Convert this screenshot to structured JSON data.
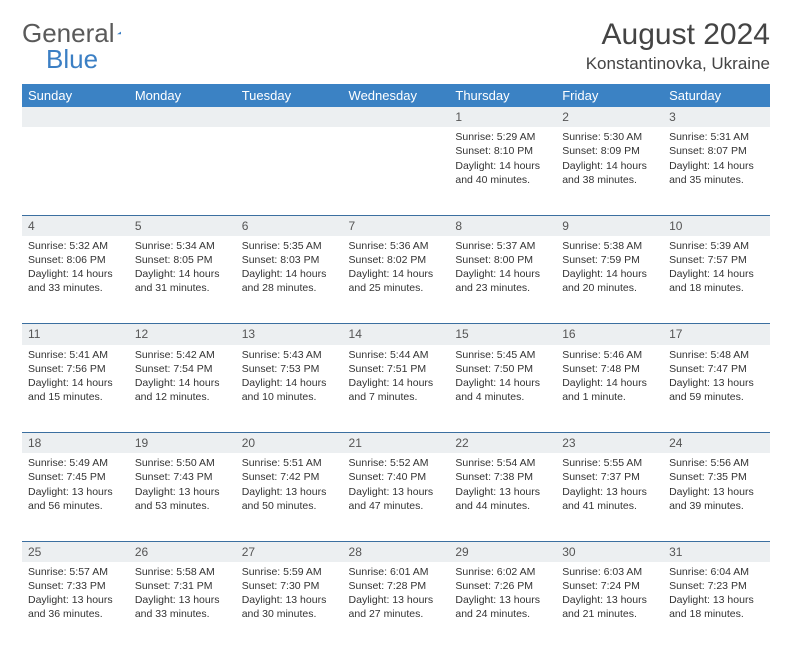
{
  "logo": {
    "part1": "General",
    "part2": "Blue"
  },
  "title": "August 2024",
  "location": "Konstantinovka, Ukraine",
  "colors": {
    "header_bg": "#3b82c4",
    "header_text": "#ffffff",
    "daynum_bg": "#eceff1",
    "row_border": "#3b6fa0",
    "logo_gray": "#5a5a5a",
    "logo_blue": "#3b7fc4"
  },
  "day_headers": [
    "Sunday",
    "Monday",
    "Tuesday",
    "Wednesday",
    "Thursday",
    "Friday",
    "Saturday"
  ],
  "weeks": [
    [
      null,
      null,
      null,
      null,
      {
        "n": "1",
        "sr": "5:29 AM",
        "ss": "8:10 PM",
        "dl": "14 hours and 40 minutes."
      },
      {
        "n": "2",
        "sr": "5:30 AM",
        "ss": "8:09 PM",
        "dl": "14 hours and 38 minutes."
      },
      {
        "n": "3",
        "sr": "5:31 AM",
        "ss": "8:07 PM",
        "dl": "14 hours and 35 minutes."
      }
    ],
    [
      {
        "n": "4",
        "sr": "5:32 AM",
        "ss": "8:06 PM",
        "dl": "14 hours and 33 minutes."
      },
      {
        "n": "5",
        "sr": "5:34 AM",
        "ss": "8:05 PM",
        "dl": "14 hours and 31 minutes."
      },
      {
        "n": "6",
        "sr": "5:35 AM",
        "ss": "8:03 PM",
        "dl": "14 hours and 28 minutes."
      },
      {
        "n": "7",
        "sr": "5:36 AM",
        "ss": "8:02 PM",
        "dl": "14 hours and 25 minutes."
      },
      {
        "n": "8",
        "sr": "5:37 AM",
        "ss": "8:00 PM",
        "dl": "14 hours and 23 minutes."
      },
      {
        "n": "9",
        "sr": "5:38 AM",
        "ss": "7:59 PM",
        "dl": "14 hours and 20 minutes."
      },
      {
        "n": "10",
        "sr": "5:39 AM",
        "ss": "7:57 PM",
        "dl": "14 hours and 18 minutes."
      }
    ],
    [
      {
        "n": "11",
        "sr": "5:41 AM",
        "ss": "7:56 PM",
        "dl": "14 hours and 15 minutes."
      },
      {
        "n": "12",
        "sr": "5:42 AM",
        "ss": "7:54 PM",
        "dl": "14 hours and 12 minutes."
      },
      {
        "n": "13",
        "sr": "5:43 AM",
        "ss": "7:53 PM",
        "dl": "14 hours and 10 minutes."
      },
      {
        "n": "14",
        "sr": "5:44 AM",
        "ss": "7:51 PM",
        "dl": "14 hours and 7 minutes."
      },
      {
        "n": "15",
        "sr": "5:45 AM",
        "ss": "7:50 PM",
        "dl": "14 hours and 4 minutes."
      },
      {
        "n": "16",
        "sr": "5:46 AM",
        "ss": "7:48 PM",
        "dl": "14 hours and 1 minute."
      },
      {
        "n": "17",
        "sr": "5:48 AM",
        "ss": "7:47 PM",
        "dl": "13 hours and 59 minutes."
      }
    ],
    [
      {
        "n": "18",
        "sr": "5:49 AM",
        "ss": "7:45 PM",
        "dl": "13 hours and 56 minutes."
      },
      {
        "n": "19",
        "sr": "5:50 AM",
        "ss": "7:43 PM",
        "dl": "13 hours and 53 minutes."
      },
      {
        "n": "20",
        "sr": "5:51 AM",
        "ss": "7:42 PM",
        "dl": "13 hours and 50 minutes."
      },
      {
        "n": "21",
        "sr": "5:52 AM",
        "ss": "7:40 PM",
        "dl": "13 hours and 47 minutes."
      },
      {
        "n": "22",
        "sr": "5:54 AM",
        "ss": "7:38 PM",
        "dl": "13 hours and 44 minutes."
      },
      {
        "n": "23",
        "sr": "5:55 AM",
        "ss": "7:37 PM",
        "dl": "13 hours and 41 minutes."
      },
      {
        "n": "24",
        "sr": "5:56 AM",
        "ss": "7:35 PM",
        "dl": "13 hours and 39 minutes."
      }
    ],
    [
      {
        "n": "25",
        "sr": "5:57 AM",
        "ss": "7:33 PM",
        "dl": "13 hours and 36 minutes."
      },
      {
        "n": "26",
        "sr": "5:58 AM",
        "ss": "7:31 PM",
        "dl": "13 hours and 33 minutes."
      },
      {
        "n": "27",
        "sr": "5:59 AM",
        "ss": "7:30 PM",
        "dl": "13 hours and 30 minutes."
      },
      {
        "n": "28",
        "sr": "6:01 AM",
        "ss": "7:28 PM",
        "dl": "13 hours and 27 minutes."
      },
      {
        "n": "29",
        "sr": "6:02 AM",
        "ss": "7:26 PM",
        "dl": "13 hours and 24 minutes."
      },
      {
        "n": "30",
        "sr": "6:03 AM",
        "ss": "7:24 PM",
        "dl": "13 hours and 21 minutes."
      },
      {
        "n": "31",
        "sr": "6:04 AM",
        "ss": "7:23 PM",
        "dl": "13 hours and 18 minutes."
      }
    ]
  ],
  "labels": {
    "sunrise": "Sunrise:",
    "sunset": "Sunset:",
    "daylight": "Daylight:"
  }
}
